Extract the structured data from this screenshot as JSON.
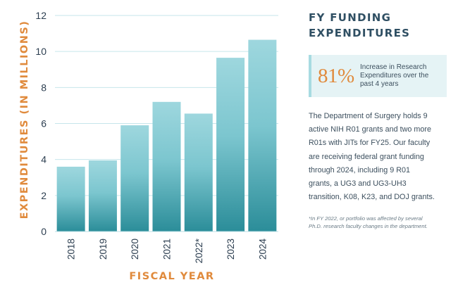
{
  "chart_data": {
    "type": "bar",
    "categories": [
      "2018",
      "2019",
      "2020",
      "2021",
      "2022*",
      "2023",
      "2024"
    ],
    "values": [
      3.6,
      3.95,
      5.9,
      7.2,
      6.55,
      9.65,
      10.65
    ],
    "ylabel": "EXPENDITURES (IN MILLIONS)",
    "xlabel": "FISCAL YEAR",
    "ylim": [
      0,
      12
    ],
    "yticks": [
      0,
      2,
      4,
      6,
      8,
      10,
      12
    ],
    "grid": true,
    "colors": {
      "bar_top": "#9ed7de",
      "bar_mid": "#6dbdc6",
      "bar_bottom": "#2b8d99",
      "grid": "#c6e6eb"
    }
  },
  "side": {
    "title": "FY FUNDING EXPENDITURES",
    "stat_value": "81%",
    "stat_desc": "Increase in Research Expenditures over the past 4 years",
    "body": "The Department of Surgery holds 9 active NIH R01 grants and two more R01s with JITs for FY25. Our faculty are receiving federal grant funding through 2024, including 9 R01 grants, a UG3 and UG3-UH3 transition, K08, K23, and DOJ grants.",
    "footnote": "*In FY 2022, or portfolio was affected by several Ph.D. research faculty changes in the department."
  }
}
